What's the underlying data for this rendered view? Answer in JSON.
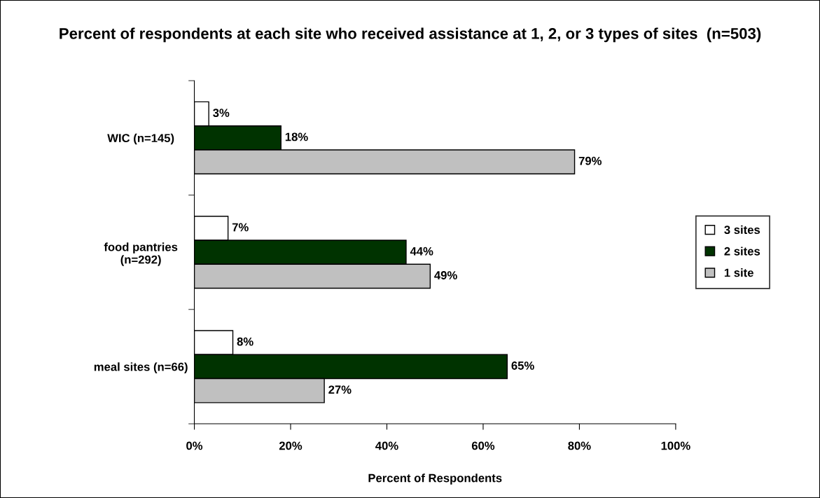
{
  "chart_data": {
    "type": "bar",
    "orientation": "horizontal",
    "title": "Percent of respondents at each site who received assistance at 1, 2, or 3 types of sites  (n=503)",
    "xlabel": "Percent of Respondents",
    "categories": [
      "WIC (n=145)",
      "food pantries\n(n=292)",
      "meal sites (n=66)"
    ],
    "series": [
      {
        "name": "3 sites",
        "color": "#ffffff",
        "values": [
          3,
          7,
          8
        ],
        "value_labels": [
          "3%",
          "7%",
          "8%"
        ]
      },
      {
        "name": "2 sites",
        "color": "#003300",
        "values": [
          18,
          44,
          65
        ],
        "value_labels": [
          "18%",
          "44%",
          "65%"
        ]
      },
      {
        "name": "1 site",
        "color": "#c0c0c0",
        "values": [
          79,
          49,
          27
        ],
        "value_labels": [
          "79%",
          "49%",
          "27%"
        ]
      }
    ],
    "xlim": [
      0,
      100
    ],
    "xticks": [
      {
        "value": 0,
        "label": "0%"
      },
      {
        "value": 20,
        "label": "20%"
      },
      {
        "value": 40,
        "label": "40%"
      },
      {
        "value": 60,
        "label": "60%"
      },
      {
        "value": 80,
        "label": "80%"
      },
      {
        "value": 100,
        "label": "100%"
      }
    ],
    "grid": false,
    "legend": "right"
  }
}
